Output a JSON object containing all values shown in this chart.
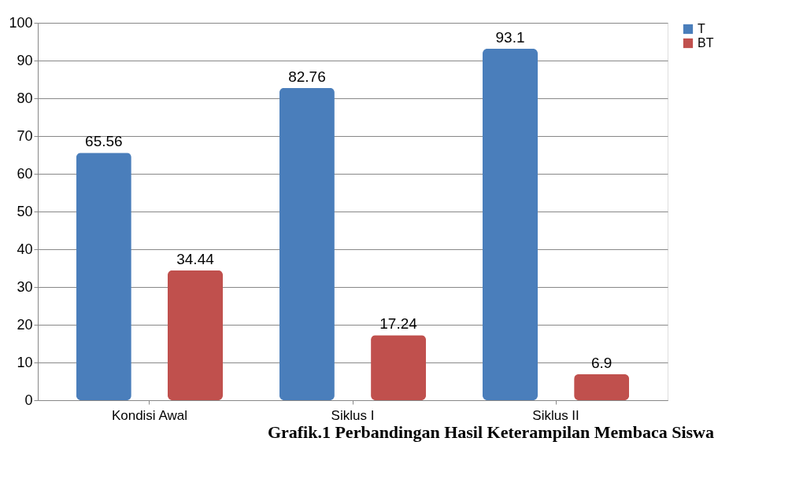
{
  "chart_data": {
    "type": "bar",
    "title": "Grafik.1 Perbandingan Hasil Keterampilan Membaca Siswa",
    "categories": [
      "Kondisi Awal",
      "Siklus I",
      "Siklus II"
    ],
    "series": [
      {
        "name": "T",
        "color": "#4a7ebb",
        "values": [
          65.56,
          82.76,
          93.1
        ]
      },
      {
        "name": "BT",
        "color": "#c0504d",
        "values": [
          34.44,
          17.24,
          6.9
        ]
      }
    ],
    "ylim": [
      0,
      100
    ],
    "yticks": [
      0,
      10,
      20,
      30,
      40,
      50,
      60,
      70,
      80,
      90,
      100
    ],
    "grid": "y",
    "legend": "right",
    "data_labels": true
  }
}
